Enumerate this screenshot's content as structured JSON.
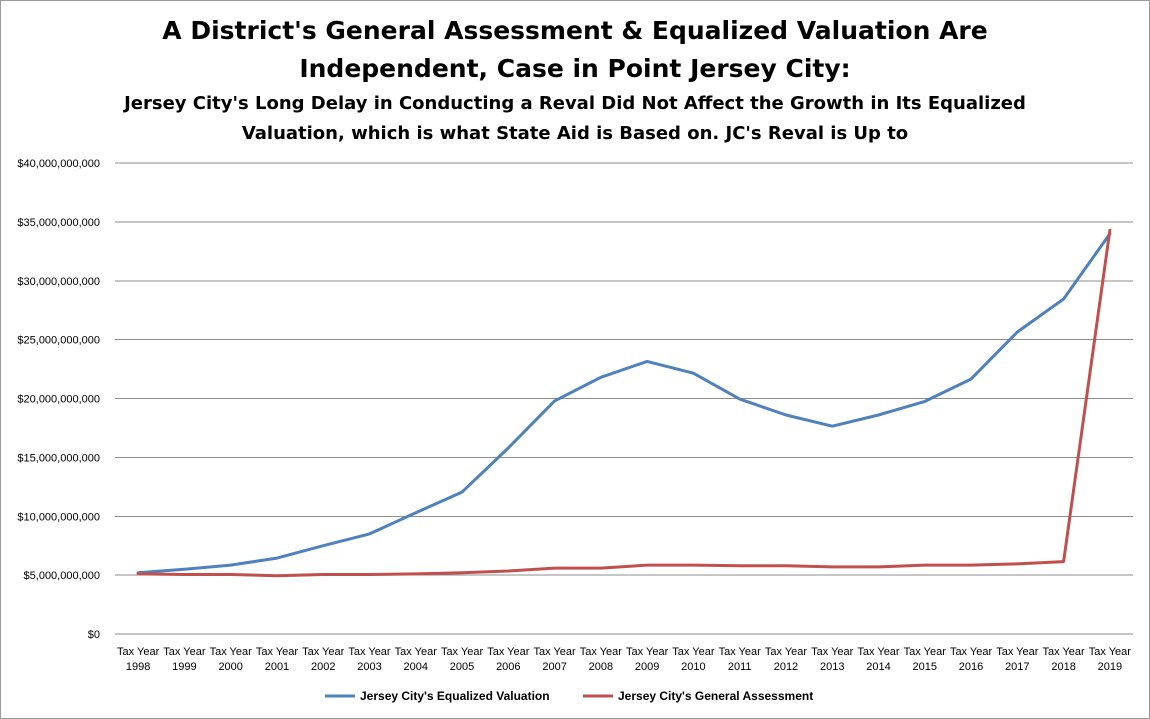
{
  "chart_data": {
    "type": "line",
    "title": "A District's General Assessment & Equalized Valuation Are",
    "title_line2": "Independent, Case in Point Jersey City:",
    "subtitle": "Jersey City's Long Delay in Conducting a Reval Did Not Affect the Growth in Its Equalized",
    "subtitle_line2": "Valuation, which is what State Aid is Based on.  JC's Reval is Up to",
    "xlabel": "",
    "ylabel": "",
    "ylim": [
      0,
      40000000000
    ],
    "yticks": [
      0,
      5000000000,
      10000000000,
      15000000000,
      20000000000,
      25000000000,
      30000000000,
      35000000000,
      40000000000
    ],
    "ytick_labels": [
      "$0",
      "$5,000,000,000",
      "$10,000,000,000",
      "$15,000,000,000",
      "$20,000,000,000",
      "$25,000,000,000",
      "$30,000,000,000",
      "$35,000,000,000",
      "$40,000,000,000"
    ],
    "grid": true,
    "legend_position": "bottom",
    "categories": [
      [
        "Tax Year",
        "1998"
      ],
      [
        "Tax Year",
        "1999"
      ],
      [
        "Tax Year",
        "2000"
      ],
      [
        "Tax Year",
        "2001"
      ],
      [
        "Tax Year",
        "2002"
      ],
      [
        "Tax Year",
        "2003"
      ],
      [
        "Tax Year",
        "2004"
      ],
      [
        "Tax Year",
        "2005"
      ],
      [
        "Tax Year",
        "2006"
      ],
      [
        "Tax Year",
        "2007"
      ],
      [
        "Tax Year",
        "2008"
      ],
      [
        "Tax Year",
        "2009"
      ],
      [
        "Tax Year",
        "2010"
      ],
      [
        "Tax Year",
        "2011"
      ],
      [
        "Tax Year",
        "2012"
      ],
      [
        "Tax Year",
        "2013"
      ],
      [
        "Tax Year",
        "2014"
      ],
      [
        "Tax Year",
        "2015"
      ],
      [
        "Tax Year",
        "2016"
      ],
      [
        "Tax Year",
        "2017"
      ],
      [
        "Tax Year",
        "2018"
      ],
      [
        "Tax Year",
        "2019"
      ]
    ],
    "series": [
      {
        "name": "Jersey City's Equalized Valuation",
        "color": "#4f81bd",
        "values": [
          5200000000,
          5500000000,
          5850000000,
          6450000000,
          7500000000,
          8500000000,
          10300000000,
          12050000000,
          15800000000,
          19800000000,
          21800000000,
          23150000000,
          22150000000,
          19950000000,
          18600000000,
          17650000000,
          18600000000,
          19750000000,
          21650000000,
          25650000000,
          28450000000,
          34000000000
        ]
      },
      {
        "name": "Jersey City's General Assessment",
        "color": "#c0504d",
        "values": [
          5100000000,
          5050000000,
          5050000000,
          4950000000,
          5050000000,
          5050000000,
          5100000000,
          5200000000,
          5350000000,
          5600000000,
          5600000000,
          5850000000,
          5850000000,
          5800000000,
          5800000000,
          5700000000,
          5700000000,
          5850000000,
          5850000000,
          5950000000,
          6150000000,
          34300000000
        ]
      }
    ]
  }
}
